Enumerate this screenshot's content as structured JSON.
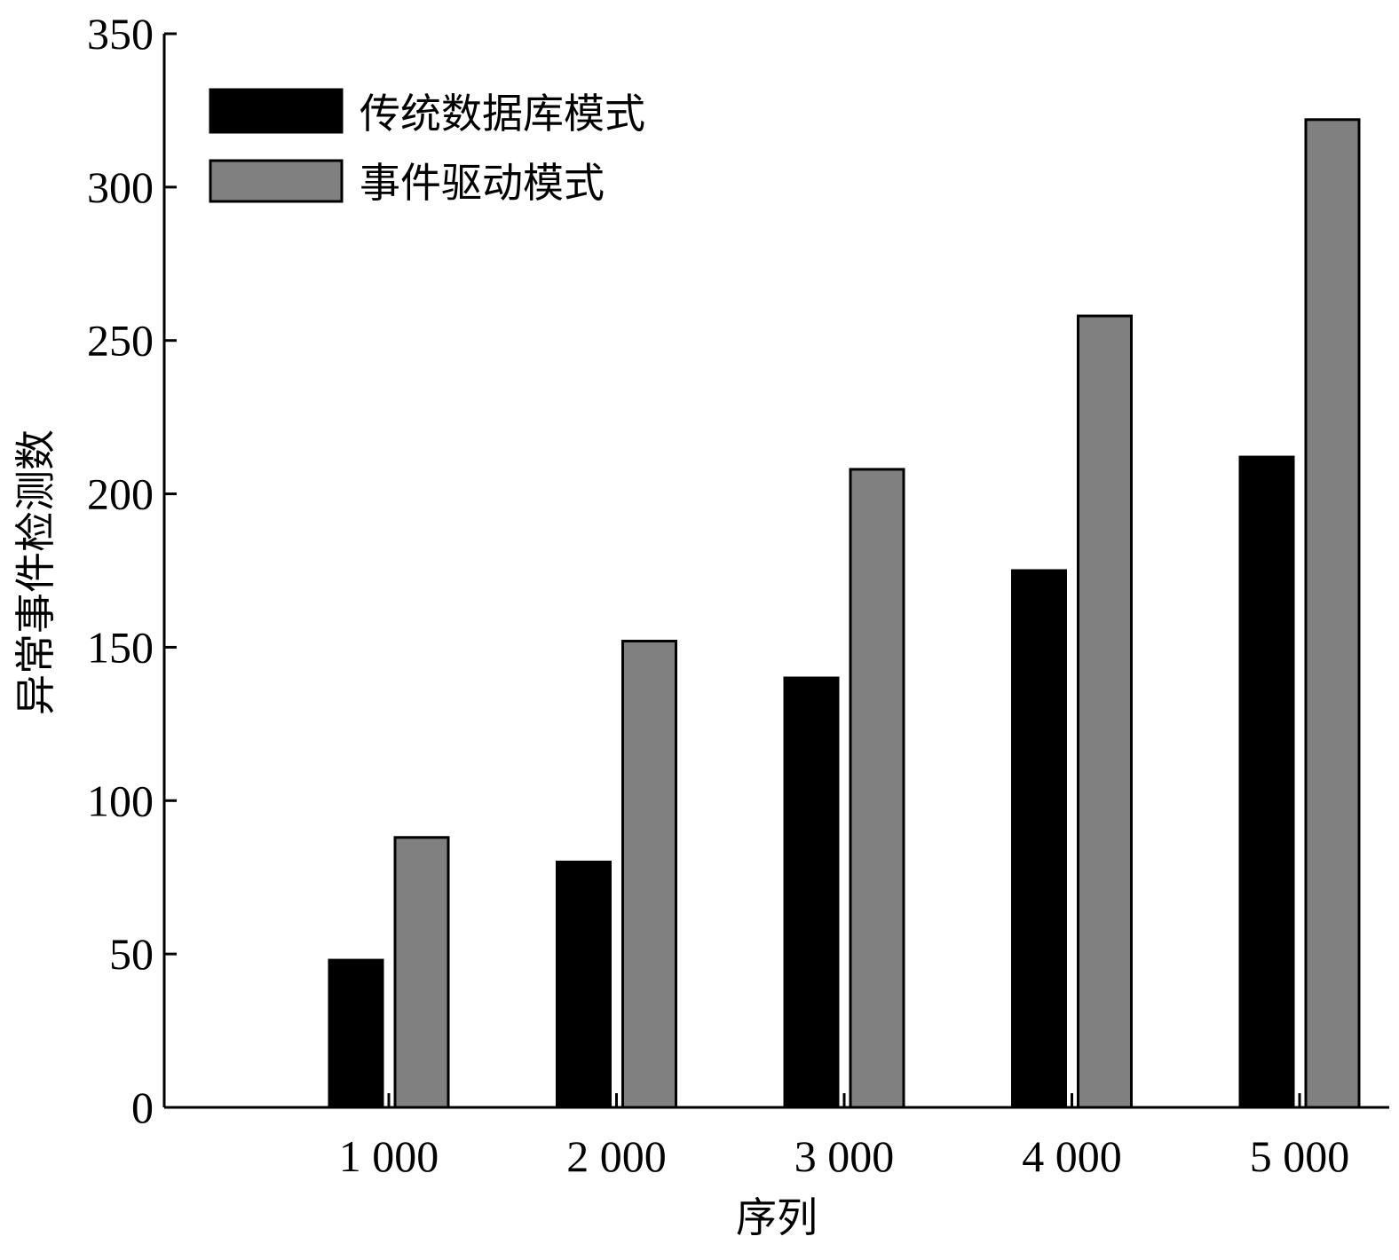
{
  "chart_data": {
    "type": "bar",
    "title": "",
    "xlabel": "序列",
    "ylabel": "异常事件检测数",
    "categories": [
      "1 000",
      "2 000",
      "3 000",
      "4 000",
      "5 000"
    ],
    "series": [
      {
        "name": "传统数据库模式",
        "color": "#000000",
        "values": [
          48,
          80,
          140,
          175,
          212
        ]
      },
      {
        "name": "事件驱动模式",
        "color": "#808080",
        "values": [
          88,
          152,
          208,
          258,
          322
        ]
      }
    ],
    "ylim": [
      0,
      350
    ],
    "yticks": [
      0,
      50,
      100,
      150,
      200,
      250,
      300,
      350
    ],
    "grid": false,
    "legend_position": "top-left"
  }
}
